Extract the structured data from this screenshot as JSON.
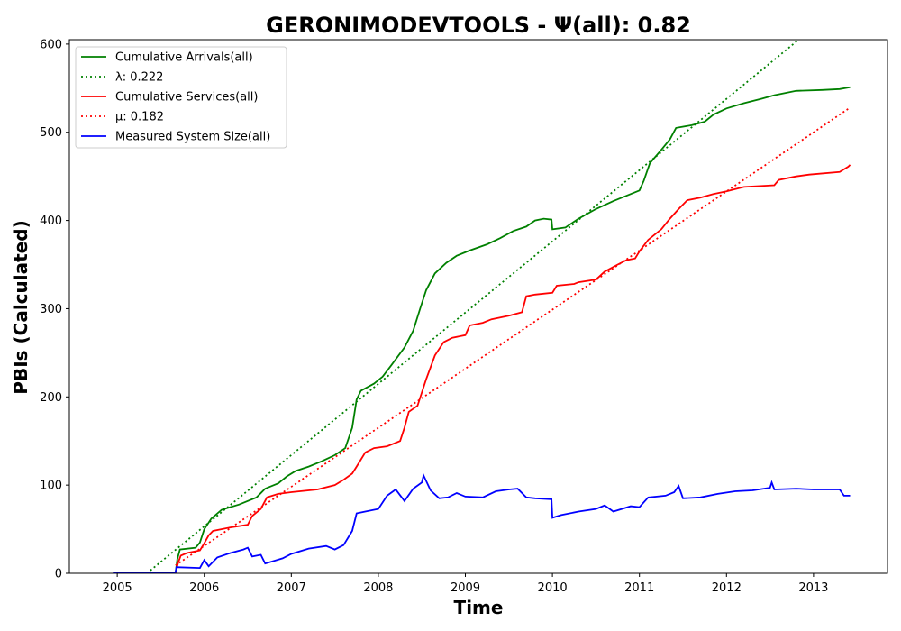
{
  "chart_data": {
    "type": "line",
    "title": "GERONIMODEVTOOLS -  Ψ(all): 0.82",
    "xlabel": "Time",
    "ylabel": "PBIs (Calculated)",
    "xlim": [
      2004.45,
      2013.85
    ],
    "ylim": [
      0,
      605
    ],
    "x_ticks": [
      "2005",
      "2006",
      "2007",
      "2008",
      "2009",
      "2010",
      "2011",
      "2012",
      "2013"
    ],
    "y_ticks": [
      "0",
      "100",
      "200",
      "300",
      "400",
      "500",
      "600"
    ],
    "grid": false,
    "legend_position": "upper-left",
    "series": [
      {
        "name": "Cumulative Arrivals(all)",
        "color": "#008000",
        "style": "solid",
        "points": [
          [
            2005.67,
            0
          ],
          [
            2005.69,
            16
          ],
          [
            2005.72,
            27
          ],
          [
            2005.9,
            29
          ],
          [
            2005.95,
            35
          ],
          [
            2006.0,
            50
          ],
          [
            2006.08,
            62
          ],
          [
            2006.2,
            72
          ],
          [
            2006.4,
            78
          ],
          [
            2006.6,
            86
          ],
          [
            2006.7,
            96
          ],
          [
            2006.85,
            102
          ],
          [
            2006.95,
            110
          ],
          [
            2007.05,
            116
          ],
          [
            2007.2,
            121
          ],
          [
            2007.35,
            127
          ],
          [
            2007.5,
            134
          ],
          [
            2007.62,
            142
          ],
          [
            2007.7,
            165
          ],
          [
            2007.75,
            197
          ],
          [
            2007.8,
            207
          ],
          [
            2007.95,
            215
          ],
          [
            2008.05,
            223
          ],
          [
            2008.15,
            236
          ],
          [
            2008.3,
            256
          ],
          [
            2008.4,
            275
          ],
          [
            2008.48,
            300
          ],
          [
            2008.55,
            321
          ],
          [
            2008.65,
            340
          ],
          [
            2008.78,
            352
          ],
          [
            2008.9,
            360
          ],
          [
            2009.05,
            366
          ],
          [
            2009.25,
            373
          ],
          [
            2009.4,
            380
          ],
          [
            2009.55,
            388
          ],
          [
            2009.7,
            393
          ],
          [
            2009.8,
            400
          ],
          [
            2009.9,
            402
          ],
          [
            2009.99,
            401
          ],
          [
            2010.0,
            390
          ],
          [
            2010.15,
            392
          ],
          [
            2010.3,
            402
          ],
          [
            2010.5,
            413
          ],
          [
            2010.7,
            422
          ],
          [
            2010.85,
            428
          ],
          [
            2011.0,
            434
          ],
          [
            2011.05,
            445
          ],
          [
            2011.12,
            465
          ],
          [
            2011.25,
            480
          ],
          [
            2011.35,
            492
          ],
          [
            2011.42,
            505
          ],
          [
            2011.6,
            508
          ],
          [
            2011.75,
            512
          ],
          [
            2011.85,
            520
          ],
          [
            2012.0,
            527
          ],
          [
            2012.2,
            533
          ],
          [
            2012.4,
            538
          ],
          [
            2012.55,
            542
          ],
          [
            2012.8,
            547
          ],
          [
            2013.1,
            548
          ],
          [
            2013.3,
            549
          ],
          [
            2013.42,
            551
          ]
        ]
      },
      {
        "name": "λ: 0.222",
        "color": "#008000",
        "style": "dotted",
        "points": [
          [
            2005.34,
            0
          ],
          [
            2012.83,
            605
          ]
        ]
      },
      {
        "name": "Cumulative Services(all)",
        "color": "#ff0000",
        "style": "solid",
        "points": [
          [
            2005.67,
            0
          ],
          [
            2005.7,
            12
          ],
          [
            2005.73,
            20
          ],
          [
            2005.8,
            23
          ],
          [
            2005.95,
            26
          ],
          [
            2006.0,
            34
          ],
          [
            2006.05,
            43
          ],
          [
            2006.1,
            48
          ],
          [
            2006.3,
            52
          ],
          [
            2006.5,
            55
          ],
          [
            2006.55,
            65
          ],
          [
            2006.65,
            73
          ],
          [
            2006.72,
            86
          ],
          [
            2006.85,
            90
          ],
          [
            2007.0,
            92
          ],
          [
            2007.3,
            95
          ],
          [
            2007.5,
            100
          ],
          [
            2007.6,
            106
          ],
          [
            2007.7,
            113
          ],
          [
            2007.75,
            121
          ],
          [
            2007.85,
            137
          ],
          [
            2007.95,
            142
          ],
          [
            2008.1,
            144
          ],
          [
            2008.25,
            150
          ],
          [
            2008.3,
            165
          ],
          [
            2008.35,
            183
          ],
          [
            2008.45,
            190
          ],
          [
            2008.5,
            205
          ],
          [
            2008.55,
            220
          ],
          [
            2008.65,
            247
          ],
          [
            2008.75,
            262
          ],
          [
            2008.85,
            267
          ],
          [
            2009.0,
            270
          ],
          [
            2009.05,
            281
          ],
          [
            2009.2,
            284
          ],
          [
            2009.3,
            288
          ],
          [
            2009.5,
            292
          ],
          [
            2009.65,
            296
          ],
          [
            2009.7,
            314
          ],
          [
            2009.8,
            316
          ],
          [
            2010.0,
            318
          ],
          [
            2010.05,
            326
          ],
          [
            2010.25,
            328
          ],
          [
            2010.3,
            330
          ],
          [
            2010.5,
            333
          ],
          [
            2010.6,
            342
          ],
          [
            2010.75,
            350
          ],
          [
            2010.85,
            355
          ],
          [
            2010.95,
            357
          ],
          [
            2011.0,
            365
          ],
          [
            2011.1,
            378
          ],
          [
            2011.25,
            390
          ],
          [
            2011.35,
            402
          ],
          [
            2011.45,
            413
          ],
          [
            2011.55,
            423
          ],
          [
            2011.7,
            426
          ],
          [
            2011.85,
            430
          ],
          [
            2012.0,
            433
          ],
          [
            2012.2,
            438
          ],
          [
            2012.55,
            440
          ],
          [
            2012.6,
            446
          ],
          [
            2012.8,
            450
          ],
          [
            2012.95,
            452
          ],
          [
            2013.3,
            455
          ],
          [
            2013.4,
            461
          ],
          [
            2013.42,
            463
          ]
        ]
      },
      {
        "name": "μ: 0.182",
        "color": "#ff0000",
        "style": "dotted",
        "points": [
          [
            2005.67,
            9
          ],
          [
            2013.42,
            528
          ]
        ]
      },
      {
        "name": "Measured System Size(all)",
        "color": "#0000ff",
        "style": "solid",
        "points": [
          [
            2004.95,
            1
          ],
          [
            2005.67,
            1
          ],
          [
            2005.68,
            7
          ],
          [
            2005.95,
            6
          ],
          [
            2006.0,
            15
          ],
          [
            2006.05,
            8
          ],
          [
            2006.15,
            18
          ],
          [
            2006.3,
            23
          ],
          [
            2006.45,
            27
          ],
          [
            2006.5,
            29
          ],
          [
            2006.55,
            19
          ],
          [
            2006.65,
            21
          ],
          [
            2006.7,
            11
          ],
          [
            2006.9,
            17
          ],
          [
            2007.0,
            22
          ],
          [
            2007.2,
            28
          ],
          [
            2007.4,
            31
          ],
          [
            2007.5,
            27
          ],
          [
            2007.6,
            32
          ],
          [
            2007.7,
            48
          ],
          [
            2007.75,
            68
          ],
          [
            2007.85,
            70
          ],
          [
            2008.0,
            73
          ],
          [
            2008.1,
            88
          ],
          [
            2008.2,
            95
          ],
          [
            2008.3,
            82
          ],
          [
            2008.4,
            96
          ],
          [
            2008.5,
            103
          ],
          [
            2008.52,
            111
          ],
          [
            2008.6,
            94
          ],
          [
            2008.7,
            85
          ],
          [
            2008.8,
            86
          ],
          [
            2008.9,
            91
          ],
          [
            2009.0,
            87
          ],
          [
            2009.2,
            86
          ],
          [
            2009.35,
            93
          ],
          [
            2009.5,
            95
          ],
          [
            2009.6,
            96
          ],
          [
            2009.7,
            86
          ],
          [
            2009.8,
            85
          ],
          [
            2009.99,
            84
          ],
          [
            2010.0,
            63
          ],
          [
            2010.1,
            66
          ],
          [
            2010.3,
            70
          ],
          [
            2010.5,
            73
          ],
          [
            2010.6,
            77
          ],
          [
            2010.7,
            70
          ],
          [
            2010.9,
            76
          ],
          [
            2011.0,
            75
          ],
          [
            2011.1,
            86
          ],
          [
            2011.3,
            88
          ],
          [
            2011.4,
            92
          ],
          [
            2011.45,
            99
          ],
          [
            2011.5,
            85
          ],
          [
            2011.7,
            86
          ],
          [
            2011.9,
            90
          ],
          [
            2012.1,
            93
          ],
          [
            2012.3,
            94
          ],
          [
            2012.5,
            97
          ],
          [
            2012.52,
            103
          ],
          [
            2012.55,
            95
          ],
          [
            2012.8,
            96
          ],
          [
            2013.0,
            95
          ],
          [
            2013.3,
            95
          ],
          [
            2013.35,
            88
          ],
          [
            2013.42,
            88
          ]
        ]
      }
    ]
  }
}
